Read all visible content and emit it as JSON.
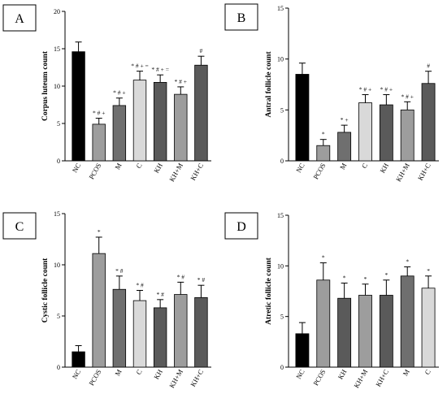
{
  "chart_data": [
    {
      "panel": "A",
      "type": "bar",
      "ylabel": "Corpus luteum count",
      "ylim": [
        0,
        20
      ],
      "yticks": [
        "0",
        "5",
        "10",
        "15",
        "20"
      ],
      "categories": [
        "NC",
        "PCOS",
        "M",
        "C",
        "KH",
        "KH+M",
        "KH+C"
      ],
      "values": [
        14.6,
        4.9,
        7.4,
        10.8,
        10.5,
        8.9,
        12.8
      ],
      "errors": [
        1.3,
        0.8,
        1.0,
        1.2,
        1.0,
        1.0,
        1.2
      ],
      "colors": [
        "#000000",
        "#9d9d9d",
        "#6f6f6f",
        "#d9d9d9",
        "#5a5a5a",
        "#9d9d9d",
        "#5a5a5a"
      ],
      "annotations": [
        "",
        "* # +",
        "* # +",
        "* # + =",
        "* # + =",
        "* # +",
        "#"
      ]
    },
    {
      "panel": "B",
      "type": "bar",
      "ylabel": "Antral follicle count",
      "ylim": [
        0,
        15
      ],
      "yticks": [
        "0",
        "5",
        "10",
        "15"
      ],
      "categories": [
        "NC",
        "PCOS",
        "M",
        "C",
        "KH",
        "KH+M",
        "KH+C"
      ],
      "values": [
        8.5,
        1.5,
        2.8,
        5.7,
        5.5,
        5.0,
        7.6
      ],
      "errors": [
        1.1,
        0.6,
        0.7,
        0.8,
        1.0,
        0.8,
        1.2
      ],
      "colors": [
        "#000000",
        "#9d9d9d",
        "#6f6f6f",
        "#d9d9d9",
        "#5a5a5a",
        "#9d9d9d",
        "#5a5a5a"
      ],
      "annotations": [
        "",
        "*",
        "* +",
        "* # +",
        "* # +",
        "* # +",
        "#"
      ]
    },
    {
      "panel": "C",
      "type": "bar",
      "ylabel": "Cystic follicle count",
      "ylim": [
        0,
        15
      ],
      "yticks": [
        "0",
        "5",
        "10",
        "15"
      ],
      "categories": [
        "NC",
        "PCOS",
        "M",
        "C",
        "KH",
        "KH+M",
        "KH+C"
      ],
      "values": [
        1.5,
        11.1,
        7.6,
        6.5,
        5.8,
        7.1,
        6.8
      ],
      "errors": [
        0.6,
        1.6,
        1.3,
        1.0,
        0.8,
        1.2,
        1.2
      ],
      "colors": [
        "#000000",
        "#9d9d9d",
        "#6f6f6f",
        "#d9d9d9",
        "#5a5a5a",
        "#9d9d9d",
        "#5a5a5a"
      ],
      "annotations": [
        "",
        "*",
        "* #",
        "* #",
        "* #",
        "* #",
        "* #"
      ]
    },
    {
      "panel": "D",
      "type": "bar",
      "ylabel": "Atretic follicle count",
      "ylim": [
        0,
        15
      ],
      "yticks": [
        "0",
        "5",
        "10",
        "15"
      ],
      "categories": [
        "NC",
        "PCOS",
        "KH",
        "KH+M",
        "KH+C",
        "M",
        "C"
      ],
      "values": [
        3.3,
        8.6,
        6.8,
        7.1,
        7.1,
        9.0,
        7.8
      ],
      "errors": [
        1.1,
        1.7,
        1.5,
        1.1,
        1.5,
        0.9,
        1.2
      ],
      "colors": [
        "#000000",
        "#9d9d9d",
        "#5a5a5a",
        "#9d9d9d",
        "#5a5a5a",
        "#6f6f6f",
        "#d9d9d9"
      ],
      "annotations": [
        "",
        "*",
        "*",
        "*",
        "*",
        "*",
        "*"
      ]
    }
  ]
}
